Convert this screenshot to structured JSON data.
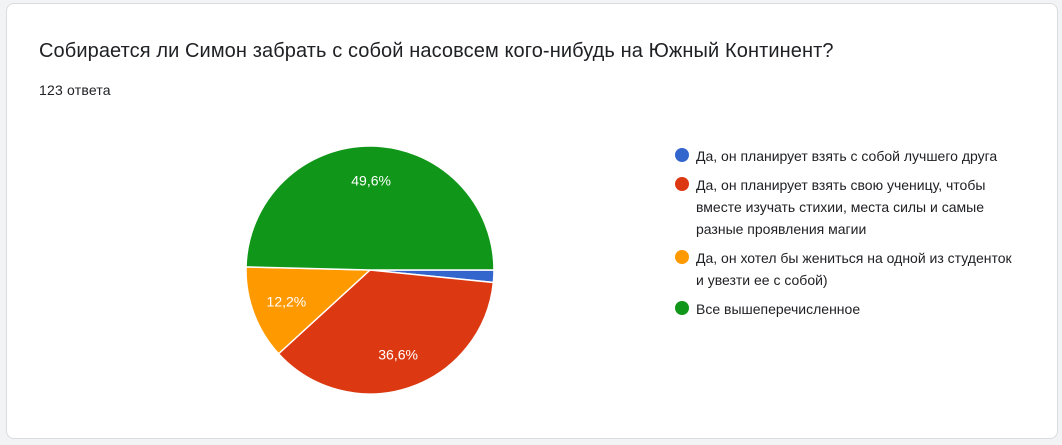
{
  "question": {
    "title": "Собирается ли Симон забрать с собой насовсем кого-нибудь на Южный Континент?",
    "response_count": "123 ответа"
  },
  "chart_data": {
    "type": "pie",
    "slices": [
      {
        "label": "Да, он планирует взять с собой лучшего друга",
        "value": 1.6,
        "display": "",
        "color": "#3366cc"
      },
      {
        "label": "Да, он планирует взять свою ученицу, чтобы вместе изучать стихии, места силы и самые разные проявления магии",
        "value": 36.6,
        "display": "36,6%",
        "color": "#dc3912"
      },
      {
        "label": "Да, он хотел бы жениться на одной из студенток и увезти ее с собой)",
        "value": 12.2,
        "display": "12,2%",
        "color": "#ff9900"
      },
      {
        "label": "Все вышеперечисленное",
        "value": 49.6,
        "display": "49,6%",
        "color": "#109618"
      }
    ],
    "legend_position": "right"
  }
}
